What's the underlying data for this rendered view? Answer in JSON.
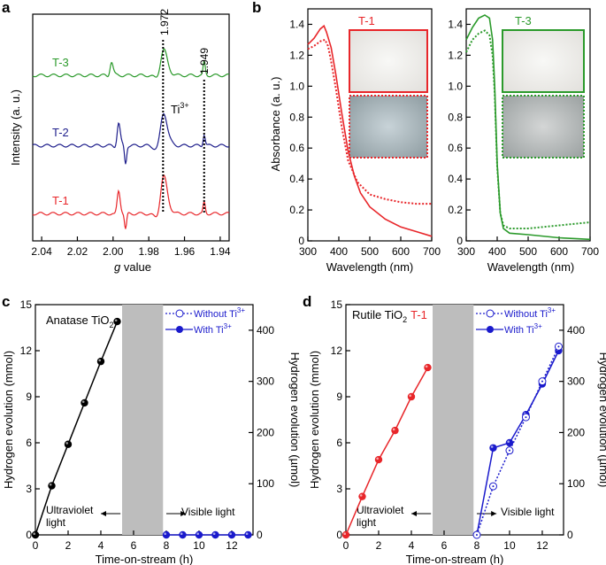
{
  "panel_labels": [
    "a",
    "b",
    "c",
    "d"
  ],
  "colors": {
    "red": "#e8262a",
    "green": "#2b9a2b",
    "navy": "#1f1f8c",
    "blue": "#1a1acc",
    "black": "#000000",
    "shade": "#bdbdbd"
  },
  "chart_data": [
    {
      "id": "a",
      "type": "line",
      "xlabel_italic": "g",
      "xlabel_rest": " value",
      "ylabel": "Intensity (a. u.)",
      "xlim": [
        2.045,
        1.935
      ],
      "x_ticks": [
        "2.04",
        "2.02",
        "2.00",
        "1.98",
        "1.96",
        "1.94"
      ],
      "x_tick_values": [
        2.04,
        2.02,
        2.0,
        1.98,
        1.96,
        1.94
      ],
      "annotations": {
        "g1": "1.972",
        "g2": "1.949",
        "ti": "Ti",
        "ti_sup": "3+"
      },
      "marker_g": [
        1.972,
        1.949
      ],
      "series": [
        {
          "name": "T-3",
          "color": "#2b9a2b",
          "offset": 0.73,
          "features": [
            [
              2.001,
              0.06,
              0.0012,
              0.6
            ],
            [
              1.972,
              0.11,
              0.0025,
              0.9
            ],
            [
              1.949,
              0.06,
              0.0008,
              0.2
            ]
          ]
        },
        {
          "name": "T-2",
          "color": "#1f1f8c",
          "offset": 0.42,
          "features": [
            [
              1.997,
              0.1,
              0.0012,
              0.5
            ],
            [
              1.993,
              -0.08,
              0.0008,
              0.0
            ],
            [
              1.972,
              0.14,
              0.0025,
              0.9
            ],
            [
              1.949,
              0.05,
              0.0008,
              0.2
            ]
          ]
        },
        {
          "name": "T-1",
          "color": "#e8262a",
          "offset": 0.12,
          "features": [
            [
              1.997,
              0.1,
              0.0012,
              0.5
            ],
            [
              1.993,
              -0.07,
              0.0008,
              0.0
            ],
            [
              1.972,
              0.16,
              0.0025,
              0.9
            ],
            [
              1.949,
              0.05,
              0.0008,
              0.2
            ]
          ]
        }
      ]
    },
    {
      "id": "b1",
      "type": "line",
      "title": "T-1",
      "xlabel": "Wavelength (nm)",
      "ylabel": "Absorbance (a. u.)",
      "xlim": [
        300,
        700
      ],
      "ylim": [
        0,
        1.5
      ],
      "x_ticks": [
        300,
        400,
        500,
        600,
        700
      ],
      "y_ticks": [
        "0",
        "0.2",
        "0.4",
        "0.6",
        "0.8",
        "1.0",
        "1.2",
        "1.4"
      ],
      "series": [
        {
          "style": "solid",
          "color": "#e8262a",
          "x": [
            300,
            320,
            340,
            352,
            360,
            375,
            390,
            410,
            430,
            450,
            470,
            500,
            550,
            600,
            650,
            700
          ],
          "y": [
            1.27,
            1.31,
            1.37,
            1.39,
            1.35,
            1.25,
            1.08,
            0.82,
            0.58,
            0.42,
            0.31,
            0.22,
            0.14,
            0.09,
            0.06,
            0.03
          ]
        },
        {
          "style": "dotted",
          "color": "#e8262a",
          "x": [
            300,
            320,
            340,
            355,
            365,
            375,
            390,
            410,
            430,
            460,
            500,
            550,
            600,
            650,
            700
          ],
          "y": [
            1.24,
            1.26,
            1.29,
            1.3,
            1.26,
            1.16,
            0.99,
            0.73,
            0.52,
            0.38,
            0.3,
            0.27,
            0.25,
            0.24,
            0.24
          ]
        }
      ]
    },
    {
      "id": "b2",
      "type": "line",
      "title": "T-3",
      "xlabel": "Wavelength (nm)",
      "xlim": [
        300,
        700
      ],
      "ylim": [
        0,
        1.5
      ],
      "x_ticks": [
        300,
        400,
        500,
        600,
        700
      ],
      "y_ticks": [
        "0",
        "0.2",
        "0.4",
        "0.6",
        "0.8",
        "1.0",
        "1.2",
        "1.4"
      ],
      "series": [
        {
          "style": "solid",
          "color": "#2b9a2b",
          "x": [
            300,
            320,
            340,
            360,
            375,
            385,
            392,
            400,
            410,
            420,
            440,
            500,
            600,
            700
          ],
          "y": [
            1.3,
            1.38,
            1.44,
            1.46,
            1.44,
            1.3,
            1.0,
            0.5,
            0.18,
            0.08,
            0.05,
            0.04,
            0.02,
            0.01
          ]
        },
        {
          "style": "dotted",
          "color": "#2b9a2b",
          "x": [
            300,
            320,
            340,
            360,
            375,
            385,
            392,
            400,
            410,
            420,
            440,
            500,
            600,
            700
          ],
          "y": [
            1.22,
            1.3,
            1.34,
            1.36,
            1.33,
            1.2,
            0.95,
            0.48,
            0.18,
            0.1,
            0.08,
            0.08,
            0.1,
            0.12
          ]
        }
      ]
    },
    {
      "id": "c",
      "type": "line",
      "title": "Anatase TiO",
      "title_sub": "2",
      "xlabel": "Time-on-stream (h)",
      "ylabel": "Hydrogen evolution (mmol)",
      "ylabel_right": "Hydrogen evolution (µmol)",
      "xlim": [
        0,
        13.3
      ],
      "ylim": [
        0,
        15
      ],
      "x_ticks": [
        0,
        2,
        4,
        6,
        8,
        10,
        12
      ],
      "y_ticks": [
        0,
        3,
        6,
        9,
        12,
        15
      ],
      "y_ticks_right": [
        0,
        100,
        200,
        300,
        400
      ],
      "shaded": [
        5.3,
        7.8
      ],
      "legend": {
        "without": "Without Ti",
        "with": "With Ti",
        "sup": "3+"
      },
      "regions": {
        "uv1": "Ultraviolet",
        "uv2": "light",
        "vis": "Visible light"
      },
      "series": [
        {
          "name": "With Ti3+",
          "color": "#000000",
          "marker": "ball",
          "x": [
            0,
            1,
            2,
            3,
            4,
            5
          ],
          "y": [
            0,
            3.2,
            5.9,
            8.6,
            11.3,
            13.9
          ]
        },
        {
          "name": "With Ti3+ (visible)",
          "color": "#1a1acc",
          "marker": "ball",
          "x": [
            8,
            9,
            10,
            11,
            12,
            13
          ],
          "y": [
            0,
            0,
            0,
            0,
            0,
            0
          ]
        }
      ]
    },
    {
      "id": "d",
      "type": "line",
      "title": "Rutile TiO",
      "title_sub": "2",
      "title_extra": "T-1",
      "xlabel": "Time-on-stream (h)",
      "ylabel": "Hydrogen evolution (mmol)",
      "ylabel_right": "Hydrogen evolution (µmol)",
      "xlim": [
        0,
        13.3
      ],
      "ylim": [
        0,
        15
      ],
      "x_ticks": [
        0,
        2,
        4,
        6,
        8,
        10,
        12
      ],
      "y_ticks": [
        0,
        3,
        6,
        9,
        12,
        15
      ],
      "y_ticks_right": [
        0,
        100,
        200,
        300,
        400
      ],
      "right_max": 450,
      "shaded": [
        5.3,
        7.8
      ],
      "legend": {
        "without": "Without Ti",
        "with": "With Ti",
        "sup": "3+"
      },
      "regions": {
        "uv1": "Ultraviolet",
        "uv2": "light",
        "vis": "Visible light"
      },
      "series": [
        {
          "name": "UV",
          "color": "#e8262a",
          "marker": "ball",
          "axis": "left",
          "x": [
            0,
            1,
            2,
            3,
            4,
            5
          ],
          "y": [
            0,
            2.5,
            4.9,
            6.8,
            9.0,
            10.9
          ]
        },
        {
          "name": "With Ti3+",
          "color": "#1a1acc",
          "marker": "ball",
          "axis": "right",
          "x": [
            8,
            9,
            10,
            11,
            12,
            13
          ],
          "y": [
            0,
            170,
            180,
            235,
            295,
            360
          ]
        },
        {
          "name": "Without Ti3+",
          "color": "#1a1acc",
          "marker": "circle",
          "dotted": true,
          "axis": "right",
          "x": [
            8,
            9,
            10,
            11,
            12,
            13
          ],
          "y": [
            0,
            95,
            165,
            230,
            300,
            368
          ]
        }
      ]
    }
  ]
}
